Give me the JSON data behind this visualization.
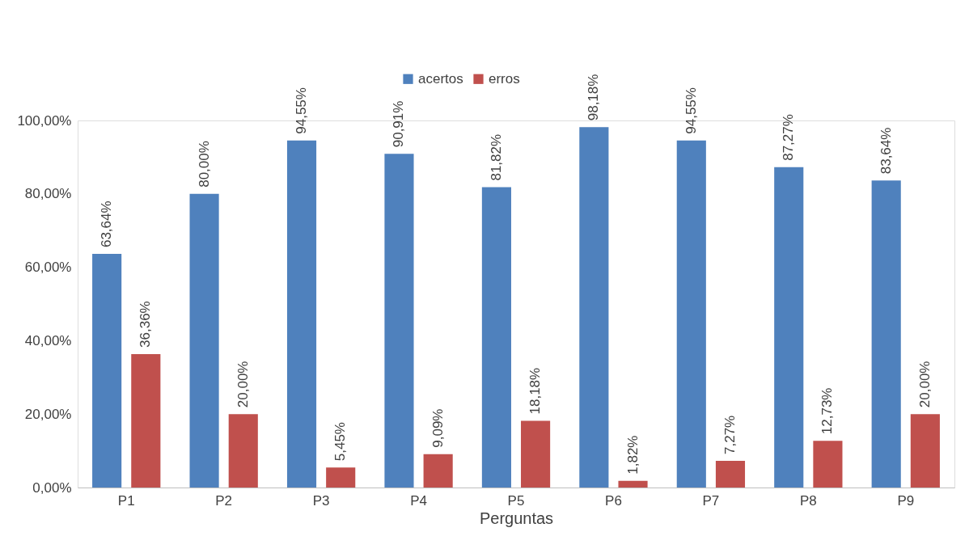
{
  "chart_data": {
    "type": "bar",
    "xlabel": "Perguntas",
    "categories": [
      "P1",
      "P2",
      "P3",
      "P4",
      "P5",
      "P6",
      "P7",
      "P8",
      "P9"
    ],
    "series": [
      {
        "name": "acertos",
        "color": "#4f81bd",
        "values": [
          63.64,
          80.0,
          94.55,
          90.91,
          81.82,
          98.18,
          94.55,
          87.27,
          83.64
        ],
        "value_labels": [
          "63,64%",
          "80,00%",
          "94,55%",
          "90,91%",
          "81,82%",
          "98,18%",
          "94,55%",
          "87,27%",
          "83,64%"
        ]
      },
      {
        "name": "erros",
        "color": "#c0504d",
        "values": [
          36.36,
          20.0,
          5.45,
          9.09,
          18.18,
          1.82,
          7.27,
          12.73,
          20.0
        ],
        "value_labels": [
          "36,36%",
          "20,00%",
          "5,45%",
          "9,09%",
          "18,18%",
          "1,82%",
          "7,27%",
          "12,73%",
          "20,00%"
        ]
      }
    ],
    "ylim": [
      0,
      100
    ],
    "yticks": [
      {
        "value": 0,
        "label": "0,00%"
      },
      {
        "value": 20,
        "label": "20,00%"
      },
      {
        "value": 40,
        "label": "40,00%"
      },
      {
        "value": 60,
        "label": "60,00%"
      },
      {
        "value": 80,
        "label": "80,00%"
      },
      {
        "value": 100,
        "label": "100,00%"
      }
    ],
    "grid": false,
    "legend": "top"
  }
}
